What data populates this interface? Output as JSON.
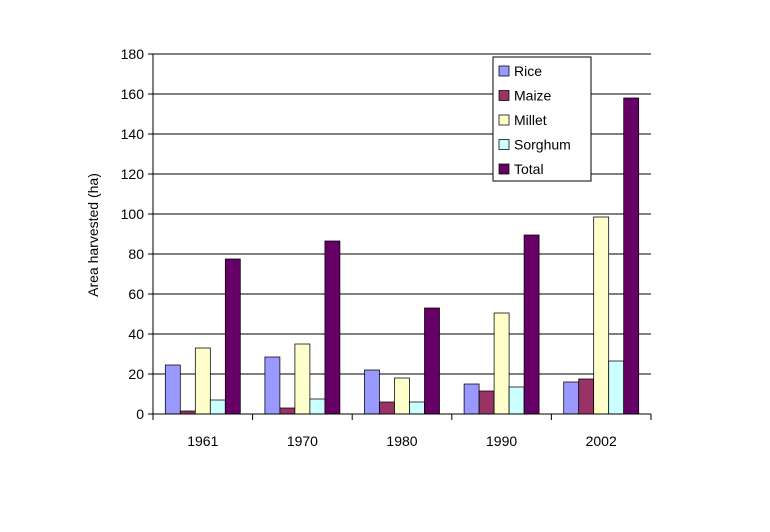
{
  "chart_data": {
    "type": "bar",
    "title": "",
    "xlabel": "",
    "ylabel": "Area harvested (ha)",
    "ylim": [
      0,
      180
    ],
    "yticks": [
      0,
      20,
      40,
      60,
      80,
      100,
      120,
      140,
      160,
      180
    ],
    "grid": true,
    "legend_position": "top-right",
    "categories": [
      "1961",
      "1970",
      "1980",
      "1990",
      "2002"
    ],
    "series": [
      {
        "name": "Rice",
        "color": "#9999ff",
        "values": [
          24.5,
          28.5,
          22,
          15,
          16
        ]
      },
      {
        "name": "Maize",
        "color": "#993366",
        "values": [
          1.5,
          3,
          6,
          11.5,
          17.5
        ]
      },
      {
        "name": "Millet",
        "color": "#ffffcc",
        "values": [
          33,
          35,
          18,
          50.5,
          98.5
        ]
      },
      {
        "name": "Sorghum",
        "color": "#ccffff",
        "values": [
          7,
          7.5,
          6,
          13.5,
          26.5
        ]
      },
      {
        "name": "Total",
        "color": "#660066",
        "values": [
          77.5,
          86.5,
          53,
          89.5,
          158
        ]
      }
    ]
  }
}
